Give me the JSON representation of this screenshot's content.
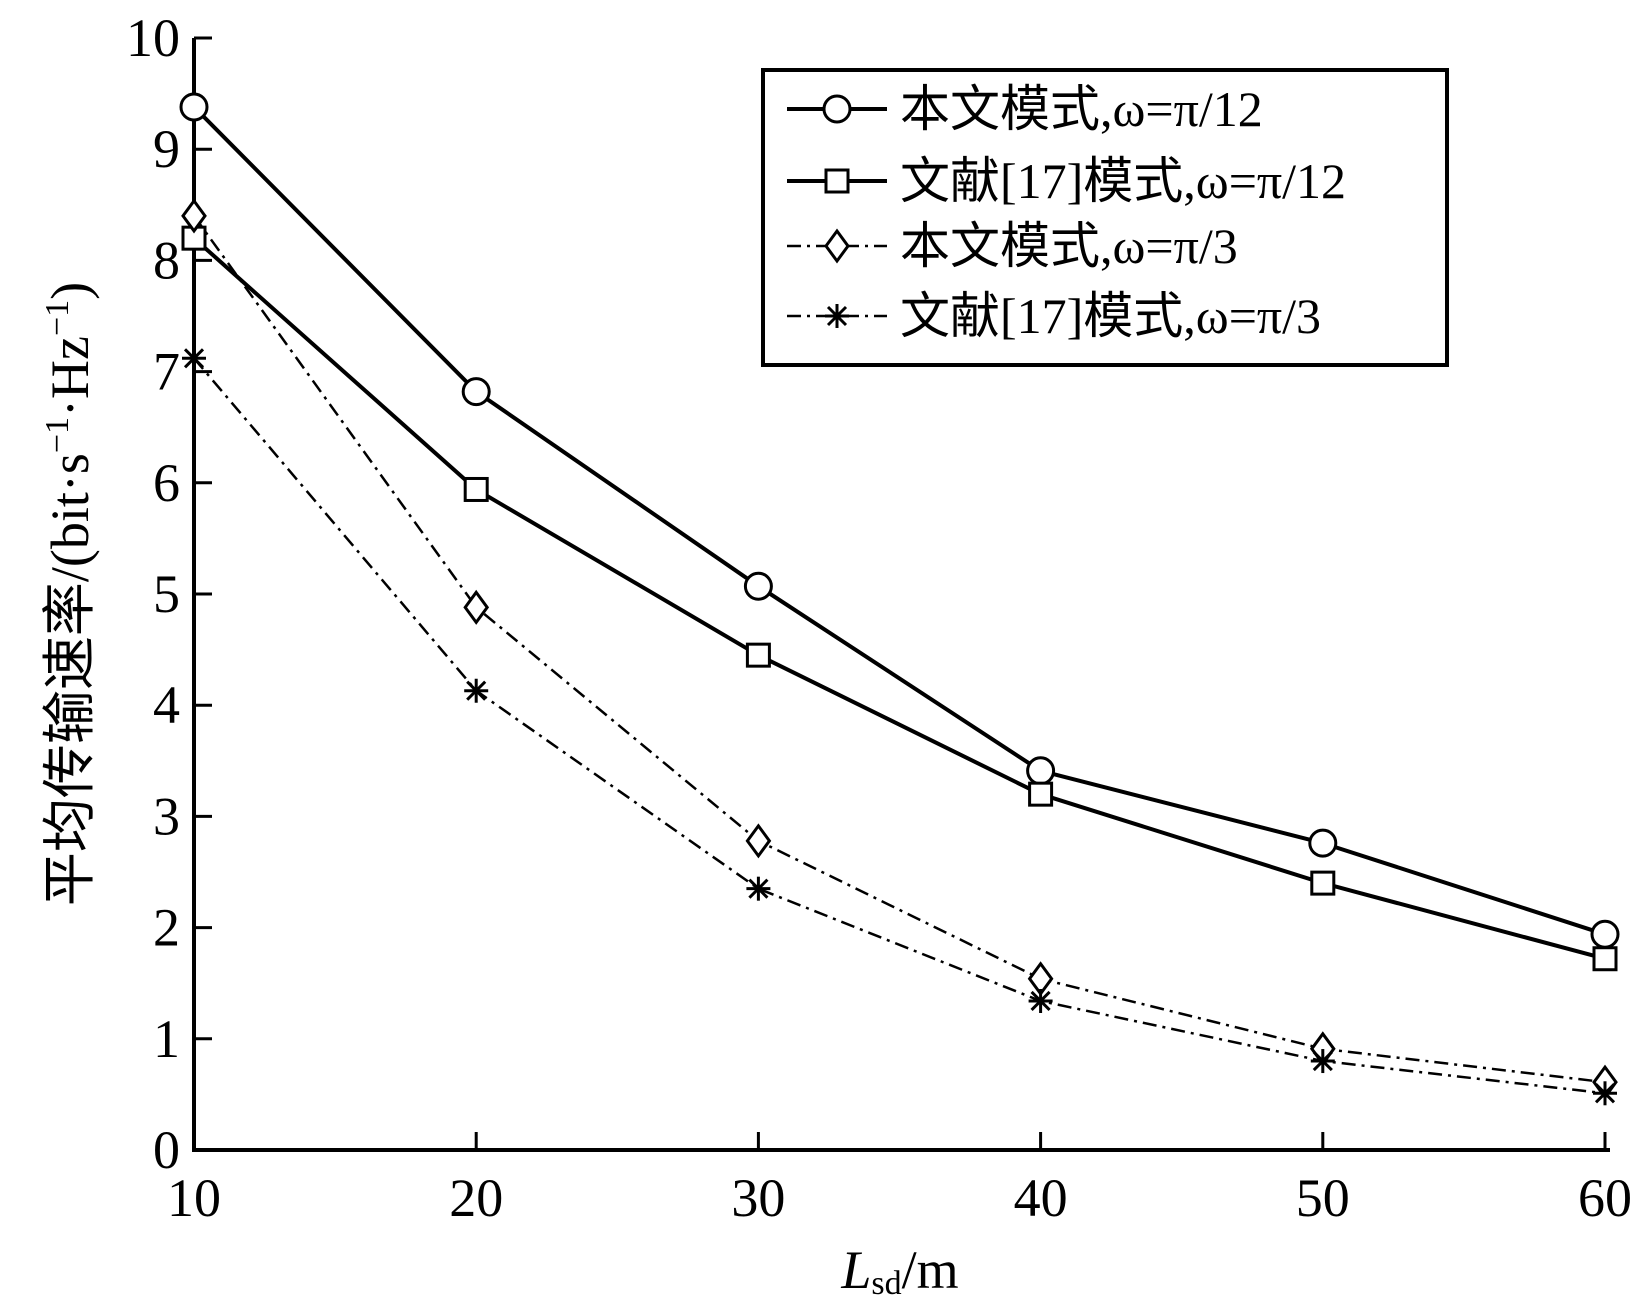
{
  "chart_data": {
    "type": "line",
    "x": [
      10,
      20,
      30,
      40,
      50,
      60
    ],
    "xlim": [
      10,
      60
    ],
    "ylim": [
      0,
      10
    ],
    "x_ticks": [
      "10",
      "20",
      "30",
      "40",
      "50",
      "60"
    ],
    "y_ticks": [
      "0",
      "1",
      "2",
      "3",
      "4",
      "5",
      "6",
      "7",
      "8",
      "9",
      "10"
    ],
    "xlabel": {
      "main": "L",
      "sub": "sd",
      "suffix": "/m"
    },
    "ylabel": {
      "prefix": "平均传输速率/(bit·s",
      "sup1": "−1",
      "mid": "·Hz",
      "sup2": "−1",
      "suffix": ")"
    },
    "grid": false,
    "legend_position": "top-right",
    "series": [
      {
        "name": "本文模式,ω=π/12",
        "marker": "circle",
        "line_style": "solid",
        "color": "#000000",
        "values": [
          9.38,
          6.82,
          5.07,
          3.41,
          2.76,
          1.94
        ]
      },
      {
        "name": "文献[17]模式,ω=π/12",
        "marker": "square",
        "line_style": "solid",
        "color": "#000000",
        "values": [
          8.2,
          5.94,
          4.45,
          3.2,
          2.4,
          1.72
        ]
      },
      {
        "name": "本文模式,ω=π/3",
        "marker": "diamond",
        "line_style": "dashdot",
        "color": "#000000",
        "values": [
          8.4,
          4.88,
          2.78,
          1.54,
          0.91,
          0.61
        ]
      },
      {
        "name": "文献[17]模式,ω=π/3",
        "marker": "asterisk",
        "line_style": "dashdot",
        "color": "#000000",
        "values": [
          7.12,
          4.13,
          2.35,
          1.34,
          0.8,
          0.51
        ]
      }
    ]
  }
}
